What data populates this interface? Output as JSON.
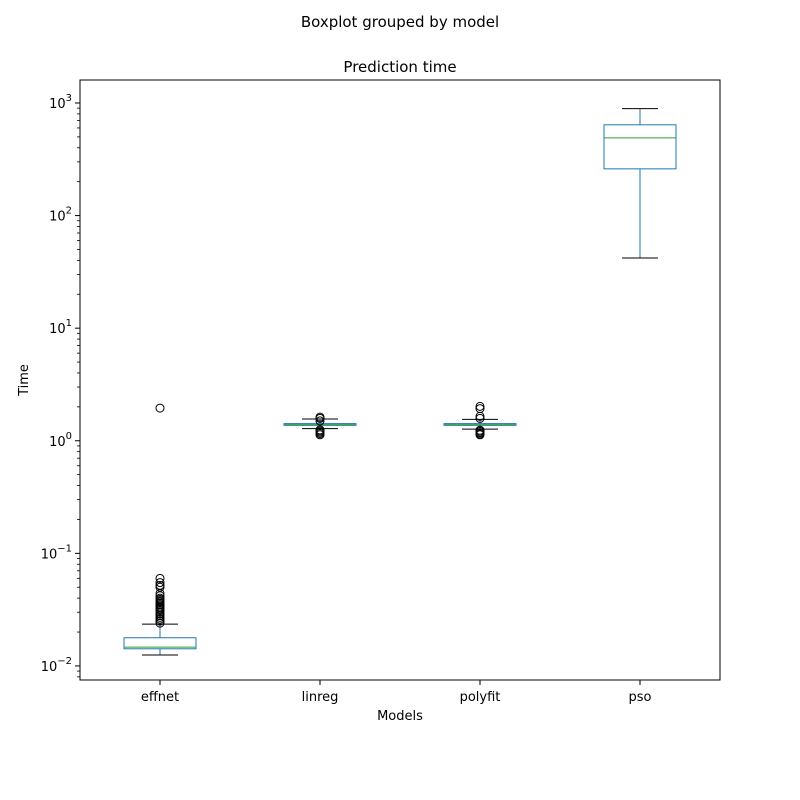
{
  "suptitle": "Boxplot grouped by model",
  "chart_data": {
    "type": "box",
    "title": "Prediction time",
    "xlabel": "Models",
    "ylabel": "Time",
    "yscale": "log",
    "ylim": [
      0.0075,
      1600
    ],
    "y_ticks": [
      {
        "value": 0.01,
        "base": "10",
        "exp": "−2"
      },
      {
        "value": 0.1,
        "base": "10",
        "exp": "−1"
      },
      {
        "value": 1,
        "base": "10",
        "exp": "0"
      },
      {
        "value": 10,
        "base": "10",
        "exp": "1"
      },
      {
        "value": 100,
        "base": "10",
        "exp": "2"
      },
      {
        "value": 1000,
        "base": "10",
        "exp": "3"
      }
    ],
    "categories": [
      "effnet",
      "linreg",
      "polyfit",
      "pso"
    ],
    "boxes": [
      {
        "category": "effnet",
        "whisker_low": 0.0125,
        "q1": 0.0142,
        "median": 0.0147,
        "q3": 0.0178,
        "whisker_high": 0.0235,
        "outliers": [
          0.024,
          0.025,
          0.026,
          0.027,
          0.028,
          0.029,
          0.03,
          0.031,
          0.032,
          0.033,
          0.034,
          0.035,
          0.036,
          0.037,
          0.038,
          0.039,
          0.04,
          0.042,
          0.044,
          0.05,
          0.052,
          0.055,
          0.06,
          1.95
        ]
      },
      {
        "category": "linreg",
        "whisker_low": 1.28,
        "q1": 1.37,
        "median": 1.39,
        "q3": 1.42,
        "whisker_high": 1.56,
        "outliers": [
          1.13,
          1.16,
          1.19,
          1.22,
          1.25,
          1.5,
          1.58,
          1.62
        ]
      },
      {
        "category": "polyfit",
        "whisker_low": 1.27,
        "q1": 1.37,
        "median": 1.39,
        "q3": 1.42,
        "whisker_high": 1.55,
        "outliers": [
          1.13,
          1.15,
          1.18,
          1.21,
          1.24,
          1.58,
          1.65,
          1.93,
          2.02
        ]
      },
      {
        "category": "pso",
        "whisker_low": 42,
        "q1": 260,
        "median": 490,
        "q3": 640,
        "whisker_high": 890,
        "outliers": []
      }
    ],
    "colors": {
      "box": "#1f77b4",
      "median": "#2ca02c",
      "whisker": "#1f77b4",
      "cap": "#000000",
      "outlier": "#000000"
    },
    "grid": false,
    "legend": "none"
  }
}
